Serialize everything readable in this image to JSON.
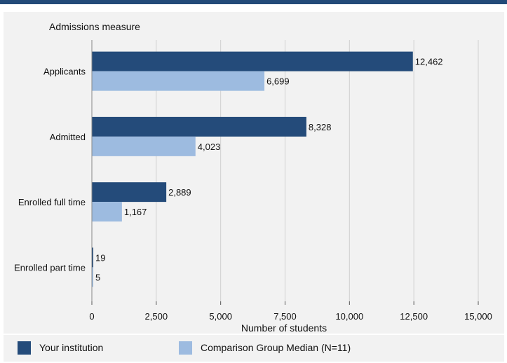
{
  "chart_data": {
    "type": "bar",
    "orientation": "horizontal",
    "categories": [
      "Applicants",
      "Admitted",
      "Enrolled full time",
      "Enrolled part time"
    ],
    "series": [
      {
        "name": "Your institution",
        "values": [
          12462,
          8328,
          2889,
          19
        ],
        "labels": [
          "12,462",
          "8,328",
          "2,889",
          "19"
        ],
        "color": "#244b7a"
      },
      {
        "name": "Comparison Group Median (N=11)",
        "values": [
          6699,
          4023,
          1167,
          5
        ],
        "labels": [
          "6,699",
          "4,023",
          "1,167",
          "5"
        ],
        "color": "#9dbbe0"
      }
    ],
    "title": "",
    "ylabel": "Admissions measure",
    "xlabel": "Number of students",
    "xlim": [
      0,
      15000
    ],
    "xticks": [
      0,
      2500,
      5000,
      7500,
      10000,
      12500,
      15000
    ],
    "xtick_labels": [
      "0",
      "2,500",
      "5,000",
      "7,500",
      "10,000",
      "12,500",
      "15,000"
    ],
    "grid": true,
    "legend_position": "bottom"
  },
  "colors": {
    "header_bar": "#234a78",
    "panel_background": "#f2f2f2",
    "gridline": "#d0d0d0"
  }
}
